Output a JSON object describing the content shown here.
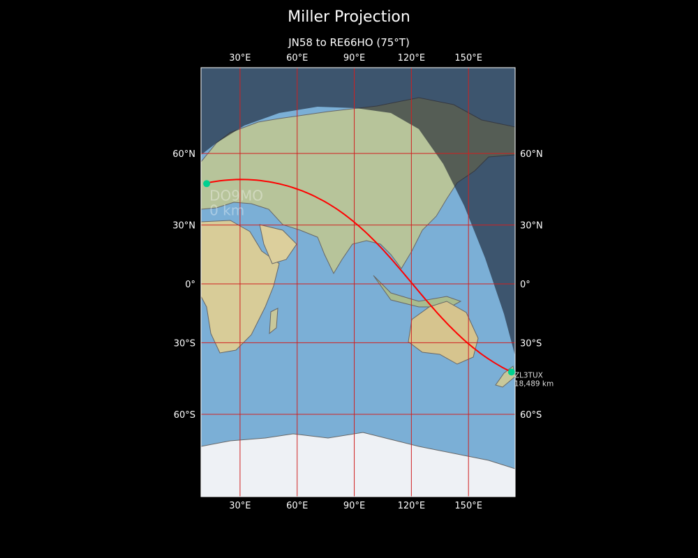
{
  "title": "Miller Projection",
  "subtitle": "JN58 to RE66HO (75°T)",
  "chart_data": {
    "type": "map",
    "projection": "Miller",
    "lon_range": [
      9.5,
      174.5
    ],
    "lat_range": [
      -83.5,
      83.5
    ],
    "x_ticks": [
      {
        "value": 30,
        "label": "30°E"
      },
      {
        "value": 60,
        "label": "60°E"
      },
      {
        "value": 90,
        "label": "90°E"
      },
      {
        "value": 120,
        "label": "120°E"
      },
      {
        "value": 150,
        "label": "150°E"
      }
    ],
    "y_ticks": [
      {
        "value": 60,
        "label": "60°N"
      },
      {
        "value": 30,
        "label": "30°N"
      },
      {
        "value": 0,
        "label": "0°"
      },
      {
        "value": -30,
        "label": "30°S"
      },
      {
        "value": -60,
        "label": "60°S"
      }
    ],
    "grid": true,
    "grid_color": "#d02020",
    "route_color": "#ff0000",
    "marker_color": "#00d090",
    "night_shading": true,
    "route": {
      "from": {
        "label": "DO9MO",
        "distance": "0 km",
        "lat": 48.5,
        "lon": 11.0
      },
      "to": {
        "label": "ZL3TUX",
        "distance": "18,489 km",
        "lat": -43.4,
        "lon": 172.6
      }
    }
  }
}
